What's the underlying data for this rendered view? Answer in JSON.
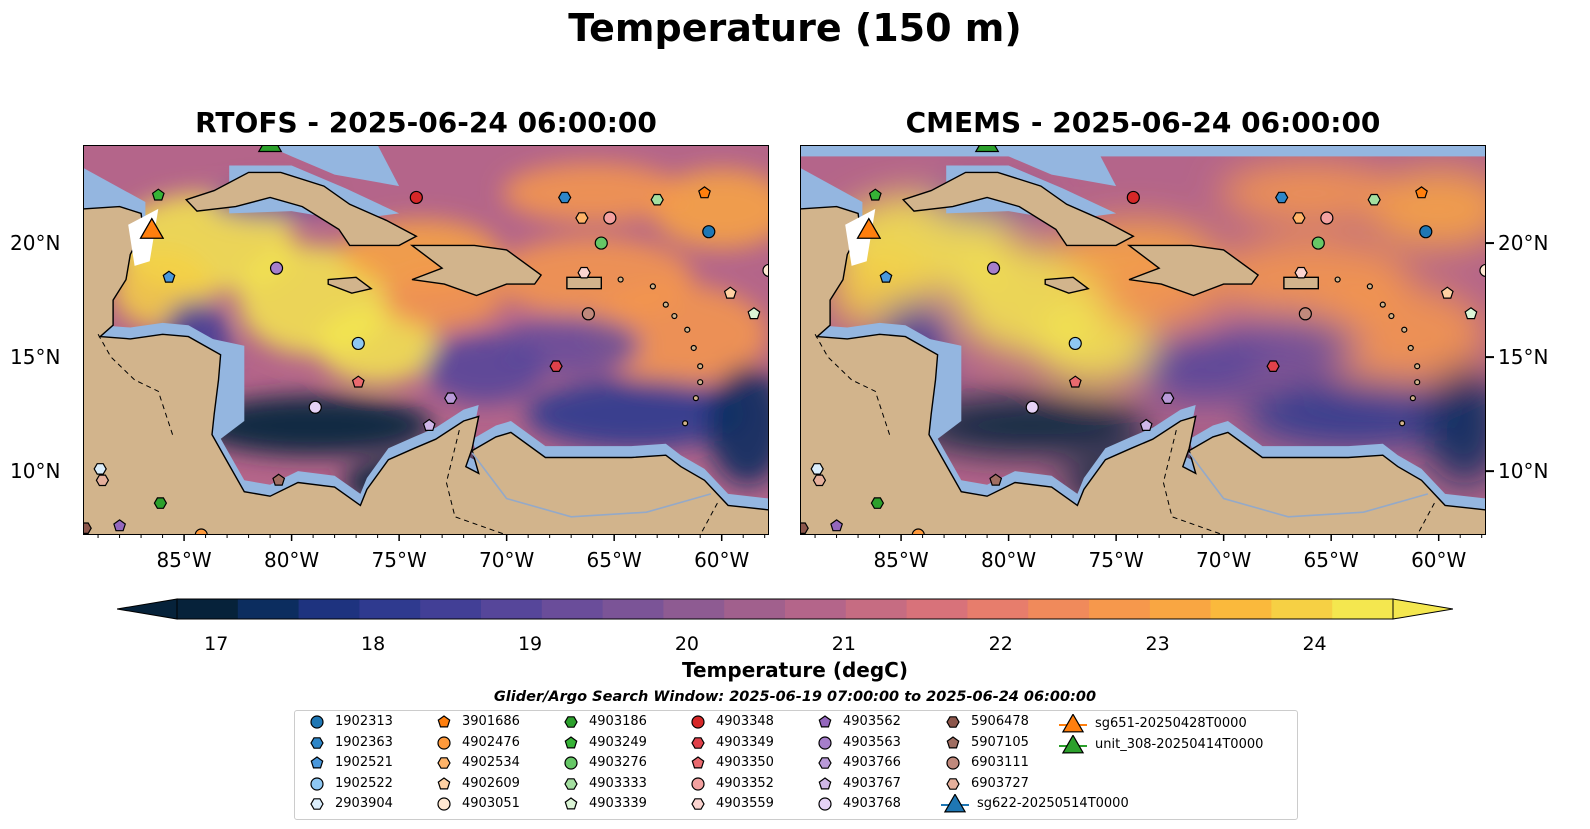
{
  "figure": {
    "suptitle": "Temperature (150 m)",
    "search_window": "Glider/Argo Search Window: 2025-06-19 07:00:00 to 2025-06-24 06:00:00"
  },
  "panels": [
    {
      "title": "RTOFS - 2025-06-24 06:00:00"
    },
    {
      "title": "CMEMS - 2025-06-24 06:00:00"
    }
  ],
  "axes": {
    "lon_labels": [
      "85°W",
      "80°W",
      "75°W",
      "70°W",
      "65°W",
      "60°W"
    ],
    "lat_labels": [
      "20°N",
      "15°N",
      "10°N"
    ],
    "lon_range": [
      -89.7,
      -57.8
    ],
    "lat_range": [
      7.2,
      24.3
    ]
  },
  "colorbar": {
    "label": "Temperature (degC)",
    "ticks": [
      "17",
      "18",
      "19",
      "20",
      "21",
      "22",
      "23",
      "24"
    ],
    "range": [
      16.75,
      24.5
    ],
    "extend": "both",
    "colors": [
      "#06223a",
      "#0c2d5f",
      "#1e337f",
      "#2f3a8f",
      "#423f96",
      "#56469a",
      "#6a4d9a",
      "#7b5497",
      "#8e5b92",
      "#a1608d",
      "#b4658a",
      "#c66c82",
      "#d8727a",
      "#e77d6c",
      "#f08a5b",
      "#f6984c",
      "#f9a642",
      "#fab93c",
      "#f6d044",
      "#f4e74f"
    ],
    "land_color": "#d2b48c",
    "shelf_color": "#94b6e0"
  },
  "legend": {
    "items": [
      {
        "label": "1902313",
        "marker": "circle",
        "color": "#1f77b4"
      },
      {
        "label": "1902363",
        "marker": "hexagon",
        "color": "#2e86c8"
      },
      {
        "label": "1902521",
        "marker": "pentagon",
        "color": "#4a98dc"
      },
      {
        "label": "1902522",
        "marker": "circle",
        "color": "#8ec7f2"
      },
      {
        "label": "2903904",
        "marker": "hexagon",
        "color": "#dbeefc"
      },
      {
        "label": "3901686",
        "marker": "pentagon",
        "color": "#ff7f0e"
      },
      {
        "label": "4902476",
        "marker": "circle",
        "color": "#ff9a3c"
      },
      {
        "label": "4902534",
        "marker": "hexagon",
        "color": "#ffb469"
      },
      {
        "label": "4902609",
        "marker": "pentagon",
        "color": "#ffd1a3"
      },
      {
        "label": "4903051",
        "marker": "circle",
        "color": "#ffe8d2"
      },
      {
        "label": "4903186",
        "marker": "hexagon",
        "color": "#2ca02c"
      },
      {
        "label": "4903249",
        "marker": "pentagon",
        "color": "#36b336"
      },
      {
        "label": "4903276",
        "marker": "circle",
        "color": "#66c766"
      },
      {
        "label": "4903333",
        "marker": "hexagon",
        "color": "#a4dfa0"
      },
      {
        "label": "4903339",
        "marker": "pentagon",
        "color": "#dcf5d6"
      },
      {
        "label": "4903348",
        "marker": "circle",
        "color": "#d62728"
      },
      {
        "label": "4903349",
        "marker": "hexagon",
        "color": "#e0414a"
      },
      {
        "label": "4903350",
        "marker": "pentagon",
        "color": "#ea6a6f"
      },
      {
        "label": "4903352",
        "marker": "circle",
        "color": "#f3a1a0"
      },
      {
        "label": "4903559",
        "marker": "hexagon",
        "color": "#fbd4d0"
      },
      {
        "label": "4903562",
        "marker": "pentagon",
        "color": "#9467bd"
      },
      {
        "label": "4903563",
        "marker": "circle",
        "color": "#a67ecb"
      },
      {
        "label": "4903766",
        "marker": "hexagon",
        "color": "#b99ad8"
      },
      {
        "label": "4903767",
        "marker": "pentagon",
        "color": "#cfb7e8"
      },
      {
        "label": "4903768",
        "marker": "circle",
        "color": "#e6d2f6"
      },
      {
        "label": "5906478",
        "marker": "hexagon",
        "color": "#8c564b"
      },
      {
        "label": "5907105",
        "marker": "pentagon",
        "color": "#a06e62"
      },
      {
        "label": "6903111",
        "marker": "circle",
        "color": "#c0897c"
      },
      {
        "label": "6903727",
        "marker": "hexagon",
        "color": "#e6b09c"
      },
      {
        "label": "sg622-20250514T0000",
        "marker": "triangle",
        "color": "#1f77b4"
      },
      {
        "label": "sg651-20250428T0000",
        "marker": "triangle",
        "color": "#ff7f0e"
      },
      {
        "label": "unit_308-20250414T0000",
        "marker": "triangle",
        "color": "#2ca02c"
      }
    ]
  },
  "floats": [
    {
      "id": "1902313",
      "lon": -60.6,
      "lat": 20.5
    },
    {
      "id": "1902363",
      "lon": -67.3,
      "lat": 22.0
    },
    {
      "id": "1902521",
      "lon": -85.7,
      "lat": 18.5
    },
    {
      "id": "1902522",
      "lon": -76.9,
      "lat": 15.6
    },
    {
      "id": "2903904",
      "lon": -88.9,
      "lat": 10.1
    },
    {
      "id": "3901686",
      "lon": -60.8,
      "lat": 22.2
    },
    {
      "id": "4902476",
      "lon": -84.2,
      "lat": 7.2
    },
    {
      "id": "4902534",
      "lon": -66.5,
      "lat": 21.1
    },
    {
      "id": "4902609",
      "lon": -59.6,
      "lat": 17.8
    },
    {
      "id": "4903051",
      "lon": -57.8,
      "lat": 18.8
    },
    {
      "id": "4903186",
      "lon": -86.1,
      "lat": 8.6
    },
    {
      "id": "4903249",
      "lon": -86.2,
      "lat": 22.1
    },
    {
      "id": "4903276",
      "lon": -65.6,
      "lat": 20.0
    },
    {
      "id": "4903333",
      "lon": -63.0,
      "lat": 21.9
    },
    {
      "id": "4903339",
      "lon": -58.5,
      "lat": 16.9
    },
    {
      "id": "4903348",
      "lon": -74.2,
      "lat": 22.0
    },
    {
      "id": "4903349",
      "lon": -67.7,
      "lat": 14.6
    },
    {
      "id": "4903350",
      "lon": -76.9,
      "lat": 13.9
    },
    {
      "id": "4903352",
      "lon": -65.2,
      "lat": 21.1
    },
    {
      "id": "4903559",
      "lon": -66.4,
      "lat": 18.7
    },
    {
      "id": "4903562",
      "lon": -88.0,
      "lat": 7.6
    },
    {
      "id": "4903563",
      "lon": -80.7,
      "lat": 18.9
    },
    {
      "id": "4903766",
      "lon": -72.6,
      "lat": 13.2
    },
    {
      "id": "4903767",
      "lon": -73.6,
      "lat": 12.0
    },
    {
      "id": "4903768",
      "lon": -78.9,
      "lat": 12.8
    },
    {
      "id": "5906478",
      "lon": -89.6,
      "lat": 7.5
    },
    {
      "id": "5907105",
      "lon": -80.6,
      "lat": 9.6
    },
    {
      "id": "6903111",
      "lon": -66.2,
      "lat": 16.9
    },
    {
      "id": "6903727",
      "lon": -88.8,
      "lat": 9.6
    }
  ],
  "gliders": [
    {
      "id": "sg622-20250514T0000",
      "lon": -86.5,
      "lat": 20.5
    },
    {
      "id": "sg651-20250428T0000",
      "lon": -86.5,
      "lat": 20.5
    },
    {
      "id": "unit_308-20250414T0000",
      "lon": -81.0,
      "lat": 24.3
    }
  ]
}
